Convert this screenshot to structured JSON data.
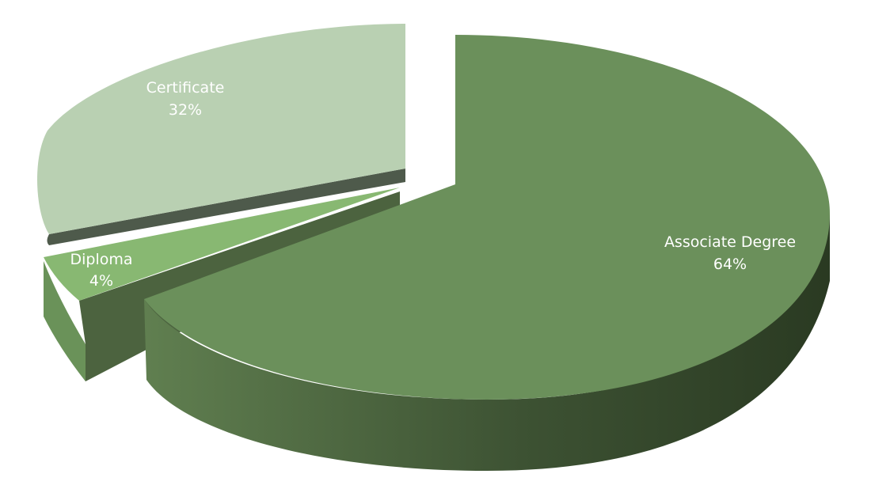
{
  "chart_data": {
    "type": "pie",
    "style": "3d-exploded",
    "title": "",
    "slices": [
      {
        "name": "Associate Degree",
        "value": 64,
        "label": "64%",
        "color": "#6b905b"
      },
      {
        "name": "Diploma",
        "value": 4,
        "label": "4%",
        "color": "#88b872"
      },
      {
        "name": "Certificate",
        "value": 32,
        "label": "32%",
        "color": "#b9d0b2"
      }
    ],
    "legend": "none",
    "data_labels": "on slices"
  }
}
